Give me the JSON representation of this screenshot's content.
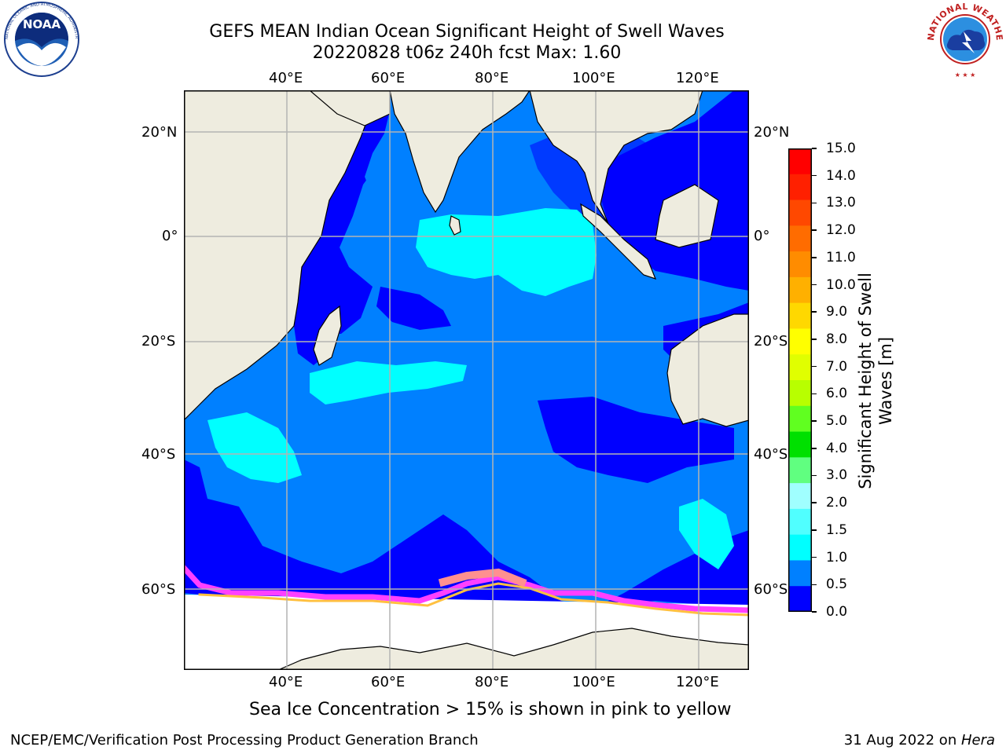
{
  "header": {
    "title_line1": "GEFS MEAN Indian Ocean Significant Height of Swell Waves",
    "title_line2": "20220828 t06z 240h fcst   Max: 1.60"
  },
  "logos": {
    "left": "NOAA",
    "left_ring_text": "NATIONAL OCEANIC AND ATMOSPHERIC ADMINISTRATION · U.S. DEPARTMENT OF COMMERCE",
    "right_ring_text": "NATIONAL WEATHER SERVICE"
  },
  "map": {
    "longitude_labels": [
      "40°E",
      "60°E",
      "80°E",
      "100°E",
      "120°E"
    ],
    "latitude_labels": [
      "20°N",
      "0°",
      "20°S",
      "40°S",
      "60°S"
    ],
    "extent": {
      "lon_min": 20,
      "lon_max": 130,
      "lat_min": -70,
      "lat_max": 28
    },
    "colors": {
      "land": "#eeecdf",
      "coast": "#000000",
      "grid": "#b4b4b4",
      "swell_0_0_5": "#0000ff",
      "swell_0_5_1_0": "#0080ff",
      "swell_1_0_1_5": "#00ffff",
      "sea_ice_low": "#ff40ff",
      "sea_ice_high": "#ffc040"
    }
  },
  "colorbar": {
    "title": "Significant Height of Swell Waves [m]",
    "title_line1": "Significant Height of Swell",
    "title_line2": "Waves [m]",
    "ticks": [
      "15.0",
      "14.0",
      "13.0",
      "12.0",
      "11.0",
      "10.0",
      "9.0",
      "8.0",
      "7.0",
      "6.0",
      "5.0",
      "4.0",
      "3.0",
      "2.0",
      "1.5",
      "1.0",
      "0.5",
      "0.0"
    ],
    "colors": [
      "#ff0000",
      "#ff2000",
      "#ff4800",
      "#ff6c00",
      "#ff8c00",
      "#ffb000",
      "#ffd800",
      "#ffff00",
      "#e0ff00",
      "#b8ff00",
      "#60ff20",
      "#00e000",
      "#60ff80",
      "#a0ffff",
      "#50ffff",
      "#00ffff",
      "#0080ff",
      "#0000ff"
    ]
  },
  "caption": "Sea Ice Concentration > 15% is shown in pink to yellow",
  "footer": {
    "left": "NCEP/EMC/Verification Post Processing Product Generation Branch",
    "right_date": "31 Aug 2022 on ",
    "right_host": "Hera"
  }
}
